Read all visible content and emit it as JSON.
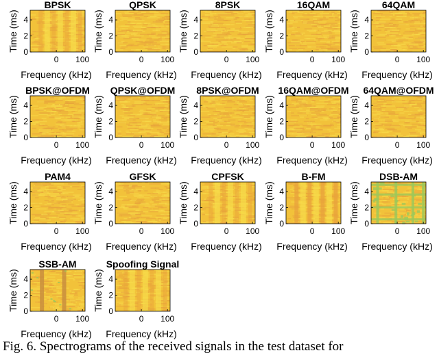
{
  "chart_data": [
    {
      "type": "heatmap",
      "title": "BPSK",
      "xlabel": "Frequency (kHz)",
      "ylabel": "Time (ms)",
      "xticks": [
        "0",
        "100"
      ],
      "yticks": [
        "0",
        "2",
        "4"
      ],
      "xlim": [
        -100,
        110
      ],
      "ylim": [
        0,
        5.2
      ],
      "pattern": "vertical-bands"
    },
    {
      "type": "heatmap",
      "title": "QPSK",
      "xlabel": "Frequency (kHz)",
      "ylabel": "Time (ms)",
      "xticks": [
        "0",
        "100"
      ],
      "yticks": [
        "0",
        "2",
        "4"
      ],
      "xlim": [
        -100,
        110
      ],
      "ylim": [
        0,
        5.2
      ],
      "pattern": "noise"
    },
    {
      "type": "heatmap",
      "title": "8PSK",
      "xlabel": "Frequency (kHz)",
      "ylabel": "Time (ms)",
      "xticks": [
        "0",
        "100"
      ],
      "yticks": [
        "0",
        "2",
        "4"
      ],
      "xlim": [
        -100,
        110
      ],
      "ylim": [
        0,
        5.2
      ],
      "pattern": "noise"
    },
    {
      "type": "heatmap",
      "title": "16QAM",
      "xlabel": "Frequency (kHz)",
      "ylabel": "Time (ms)",
      "xticks": [
        "0",
        "100"
      ],
      "yticks": [
        "0",
        "2",
        "4"
      ],
      "xlim": [
        -100,
        110
      ],
      "ylim": [
        0,
        5.2
      ],
      "pattern": "noise"
    },
    {
      "type": "heatmap",
      "title": "64QAM",
      "xlabel": "Frequency (kHz)",
      "ylabel": "Time (ms)",
      "xticks": [
        "0",
        "100"
      ],
      "yticks": [
        "0",
        "2",
        "4"
      ],
      "xlim": [
        -100,
        110
      ],
      "ylim": [
        0,
        5.2
      ],
      "pattern": "noise"
    },
    {
      "type": "heatmap",
      "title": "BPSK@OFDM",
      "xlabel": "Frequency (kHz)",
      "ylabel": "Time (ms)",
      "xticks": [
        "0",
        "100"
      ],
      "yticks": [
        "0",
        "2",
        "4"
      ],
      "xlim": [
        -100,
        110
      ],
      "ylim": [
        0,
        5.2
      ],
      "pattern": "noise"
    },
    {
      "type": "heatmap",
      "title": "QPSK@OFDM",
      "xlabel": "Frequency (kHz)",
      "ylabel": "Time (ms)",
      "xticks": [
        "0",
        "100"
      ],
      "yticks": [
        "0",
        "2",
        "4"
      ],
      "xlim": [
        -100,
        110
      ],
      "ylim": [
        0,
        5.2
      ],
      "pattern": "noise"
    },
    {
      "type": "heatmap",
      "title": "8PSK@OFDM",
      "xlabel": "Frequency (kHz)",
      "ylabel": "Time (ms)",
      "xticks": [
        "0",
        "100"
      ],
      "yticks": [
        "0",
        "2",
        "4"
      ],
      "xlim": [
        -100,
        110
      ],
      "ylim": [
        0,
        5.2
      ],
      "pattern": "noise"
    },
    {
      "type": "heatmap",
      "title": "16QAM@OFDM",
      "xlabel": "Frequency (kHz)",
      "ylabel": "Time (ms)",
      "xticks": [
        "0",
        "100"
      ],
      "yticks": [
        "0",
        "2",
        "4"
      ],
      "xlim": [
        -100,
        110
      ],
      "ylim": [
        0,
        5.2
      ],
      "pattern": "noise"
    },
    {
      "type": "heatmap",
      "title": "64QAM@OFDM",
      "xlabel": "Frequency (kHz)",
      "ylabel": "Time (ms)",
      "xticks": [
        "0",
        "100"
      ],
      "yticks": [
        "0",
        "2",
        "4"
      ],
      "xlim": [
        -100,
        110
      ],
      "ylim": [
        0,
        5.2
      ],
      "pattern": "noise"
    },
    {
      "type": "heatmap",
      "title": "PAM4",
      "xlabel": "Frequency (kHz)",
      "ylabel": "Time (ms)",
      "xticks": [
        "0",
        "100"
      ],
      "yticks": [
        "0",
        "2",
        "4"
      ],
      "xlim": [
        -100,
        110
      ],
      "ylim": [
        0,
        5.2
      ],
      "pattern": "noise"
    },
    {
      "type": "heatmap",
      "title": "GFSK",
      "xlabel": "Frequency (kHz)",
      "ylabel": "Time (ms)",
      "xticks": [
        "0",
        "100"
      ],
      "yticks": [
        "0",
        "2",
        "4"
      ],
      "xlim": [
        -100,
        110
      ],
      "ylim": [
        0,
        5.2
      ],
      "pattern": "noise"
    },
    {
      "type": "heatmap",
      "title": "CPFSK",
      "xlabel": "Frequency (kHz)",
      "ylabel": "Time (ms)",
      "xticks": [
        "0",
        "100"
      ],
      "yticks": [
        "0",
        "2",
        "4"
      ],
      "xlim": [
        -100,
        110
      ],
      "ylim": [
        0,
        5.2
      ],
      "pattern": "vertical-bands"
    },
    {
      "type": "heatmap",
      "title": "B-FM",
      "xlabel": "Frequency (kHz)",
      "ylabel": "Time (ms)",
      "xticks": [
        "0",
        "100"
      ],
      "yticks": [
        "0",
        "2",
        "4"
      ],
      "xlim": [
        -100,
        110
      ],
      "ylim": [
        0,
        5.2
      ],
      "pattern": "vertical-bands-strong"
    },
    {
      "type": "heatmap",
      "title": "DSB-AM",
      "xlabel": "Frequency (kHz)",
      "ylabel": "Time (ms)",
      "xticks": [
        "0",
        "100"
      ],
      "yticks": [
        "0",
        "2",
        "4"
      ],
      "xlim": [
        -100,
        110
      ],
      "ylim": [
        0,
        5.2
      ],
      "pattern": "grid-green"
    },
    {
      "type": "heatmap",
      "title": "SSB-AM",
      "xlabel": "Frequency (kHz)",
      "ylabel": "Time (ms)",
      "xticks": [
        "0",
        "100"
      ],
      "yticks": [
        "0",
        "2",
        "4"
      ],
      "xlim": [
        -100,
        110
      ],
      "ylim": [
        0,
        5.2
      ],
      "pattern": "dark-bars"
    },
    {
      "type": "heatmap",
      "title": "Spoofing Signal",
      "xlabel": "Frequency (kHz)",
      "ylabel": "Time (ms)",
      "xticks": [
        "0",
        "100"
      ],
      "yticks": [
        "0",
        "2",
        "4"
      ],
      "xlim": [
        -100,
        110
      ],
      "ylim": [
        0,
        5.2
      ],
      "pattern": "vertical-bands"
    }
  ],
  "colors": {
    "base": "#f2c23a",
    "light": "#f7dc4a",
    "mid": "#e8a23c",
    "dark": "#c98e3e",
    "green": "#9cc85a"
  },
  "caption": "Fig. 6.  Spectrograms of the received signals in the test dataset for"
}
